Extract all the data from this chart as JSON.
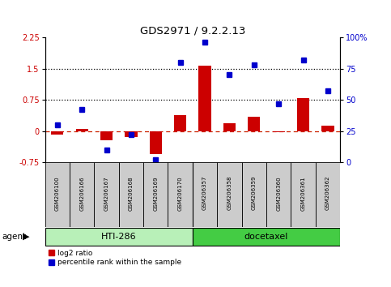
{
  "title": "GDS2971 / 9.2.2.13",
  "samples": [
    "GSM206100",
    "GSM206166",
    "GSM206167",
    "GSM206168",
    "GSM206169",
    "GSM206170",
    "GSM206357",
    "GSM206358",
    "GSM206359",
    "GSM206360",
    "GSM206361",
    "GSM206362"
  ],
  "log2_ratio": [
    -0.08,
    0.05,
    -0.22,
    -0.15,
    -0.55,
    0.38,
    1.57,
    0.18,
    0.35,
    -0.02,
    0.78,
    0.12
  ],
  "percentile_rank": [
    30,
    42,
    10,
    22,
    2,
    80,
    96,
    70,
    78,
    47,
    82,
    57
  ],
  "bar_color": "#cc0000",
  "dot_color": "#0000cc",
  "hti286_color": "#b8f0b8",
  "docetaxel_color": "#44cc44",
  "hti286_label": "HTI-286",
  "docetaxel_label": "docetaxel",
  "agent_label": "agent",
  "legend_bar": "log2 ratio",
  "legend_dot": "percentile rank within the sample",
  "ylim_left": [
    -0.75,
    2.25
  ],
  "ylim_right": [
    0,
    100
  ],
  "yticks_left": [
    -0.75,
    0,
    0.75,
    1.5,
    2.25
  ],
  "yticks_right": [
    0,
    25,
    50,
    75,
    100
  ],
  "hline_y": [
    0.75,
    1.5
  ],
  "n_hti286": 6,
  "n_docetaxel": 6,
  "background_color": "#ffffff"
}
